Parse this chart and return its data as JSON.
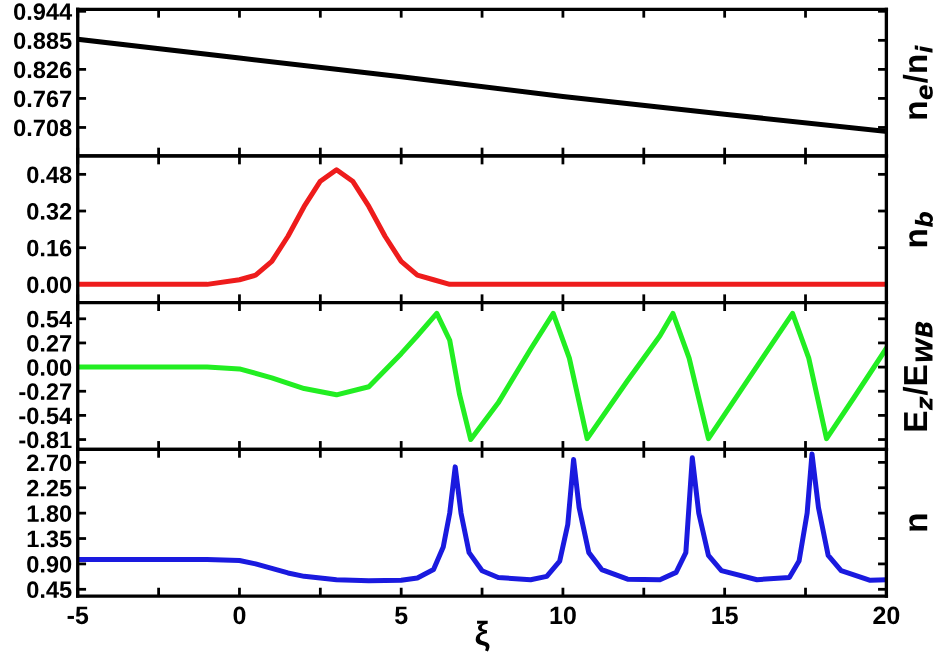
{
  "chart_data": [
    {
      "type": "line",
      "ylabel": "n$_{e}$/n$_{i}$",
      "xlim": [
        -5,
        20
      ],
      "ylim": [
        0.65,
        0.948
      ],
      "tick_labels": "y",
      "xticks": [
        -5,
        {
          "value": -2.5,
          "label": null
        },
        0,
        {
          "value": 2.5,
          "label": null
        },
        5,
        {
          "value": 7.5,
          "label": null
        },
        10,
        {
          "value": 12.5,
          "label": null
        },
        15,
        {
          "value": 17.5,
          "label": null
        },
        20
      ],
      "yticks": [
        0.708,
        0.767,
        0.826,
        0.885,
        0.944
      ],
      "series": [
        {
          "color": "#000000",
          "x": [
            -5,
            0,
            5,
            10,
            15,
            20
          ],
          "values": [
            0.887,
            0.849,
            0.811,
            0.771,
            0.735,
            0.7
          ]
        }
      ]
    },
    {
      "type": "line",
      "ylabel": "n$_{b}$",
      "xlim": [
        -5,
        20
      ],
      "ylim": [
        -0.08,
        0.56
      ],
      "tick_labels": "y",
      "xticks": [
        -5,
        {
          "value": -2.5,
          "label": null
        },
        0,
        {
          "value": 2.5,
          "label": null
        },
        5,
        {
          "value": 7.5,
          "label": null
        },
        10,
        {
          "value": 12.5,
          "label": null
        },
        15,
        {
          "value": 17.5,
          "label": null
        },
        20
      ],
      "yticks": [
        {
          "value": 0,
          "label": "0.00"
        },
        0.16,
        0.32,
        0.48
      ],
      "series": [
        {
          "color": "#ee1c1c",
          "x": [
            -5,
            -1,
            0,
            0.5,
            1,
            1.5,
            2,
            2.5,
            3,
            3.5,
            4,
            4.5,
            5,
            5.5,
            6,
            6.5,
            7,
            20
          ],
          "values": [
            0,
            0,
            0.02,
            0.04,
            0.1,
            0.21,
            0.34,
            0.45,
            0.5,
            0.45,
            0.34,
            0.21,
            0.1,
            0.04,
            0.02,
            0.0,
            0,
            0
          ]
        }
      ]
    },
    {
      "type": "line",
      "ylabel": "E$_{z}$/E$_{WB}$",
      "xlim": [
        -5,
        20
      ],
      "ylim": [
        -0.92,
        0.72
      ],
      "tick_labels": "y",
      "xticks": [
        -5,
        {
          "value": -2.5,
          "label": null
        },
        0,
        {
          "value": 2.5,
          "label": null
        },
        5,
        {
          "value": 7.5,
          "label": null
        },
        10,
        {
          "value": 12.5,
          "label": null
        },
        15,
        {
          "value": 17.5,
          "label": null
        },
        20
      ],
      "yticks": [
        -0.81,
        -0.54,
        -0.27,
        {
          "value": 0,
          "label": "0.00"
        },
        0.27,
        0.54
      ],
      "series": [
        {
          "color": "#22ee22",
          "x": [
            -5,
            -1,
            0,
            1,
            2,
            3,
            4,
            5,
            5.5,
            6.1,
            6.5,
            6.8,
            7.15,
            8,
            9,
            9.7,
            10.2,
            10.75,
            12,
            13,
            13.4,
            13.9,
            14.5,
            15.5,
            16.5,
            17.1,
            17.6,
            18.15,
            19,
            20
          ],
          "values": [
            0,
            0,
            -0.02,
            -0.12,
            -0.24,
            -0.31,
            -0.22,
            0.15,
            0.35,
            0.6,
            0.3,
            -0.3,
            -0.81,
            -0.4,
            0.2,
            0.6,
            0.1,
            -0.8,
            -0.15,
            0.35,
            0.6,
            0.1,
            -0.8,
            -0.26,
            0.28,
            0.6,
            0.1,
            -0.8,
            -0.34,
            0.21
          ]
        }
      ]
    },
    {
      "type": "line",
      "ylabel": "n",
      "xlabel": "ξ",
      "xlim": [
        -5,
        20
      ],
      "ylim": [
        0.33,
        2.93
      ],
      "xticks": [
        -5,
        {
          "value": -2.5,
          "label": null
        },
        0,
        {
          "value": 2.5,
          "label": null
        },
        5,
        {
          "value": 7.5,
          "label": null
        },
        10,
        {
          "value": 12.5,
          "label": null
        },
        15,
        {
          "value": 17.5,
          "label": null
        },
        20
      ],
      "yticks": [
        0.45,
        {
          "value": 0.9,
          "label": "0.90"
        },
        1.35,
        {
          "value": 1.8,
          "label": "1.80"
        },
        2.25,
        {
          "value": 2.7,
          "label": "2.70"
        }
      ],
      "series": [
        {
          "color": "#1a1adf",
          "x": [
            -5,
            -1,
            0,
            0.5,
            1,
            1.5,
            2,
            3,
            4,
            5,
            5.5,
            6,
            6.3,
            6.5,
            6.67,
            6.85,
            7.1,
            7.5,
            8,
            9,
            9.5,
            9.9,
            10.15,
            10.33,
            10.5,
            10.8,
            11.2,
            12,
            13,
            13.5,
            13.8,
            14.0,
            14.2,
            14.5,
            14.9,
            16,
            17,
            17.3,
            17.55,
            17.7,
            17.9,
            18.2,
            18.6,
            19.5,
            20
          ],
          "values": [
            0.98,
            0.98,
            0.96,
            0.9,
            0.82,
            0.74,
            0.68,
            0.62,
            0.6,
            0.61,
            0.65,
            0.8,
            1.2,
            1.8,
            2.62,
            1.8,
            1.1,
            0.78,
            0.66,
            0.62,
            0.68,
            0.95,
            1.6,
            2.75,
            1.9,
            1.1,
            0.8,
            0.63,
            0.62,
            0.75,
            1.1,
            2.78,
            1.8,
            1.05,
            0.78,
            0.62,
            0.66,
            0.95,
            1.8,
            2.85,
            1.9,
            1.05,
            0.78,
            0.61,
            0.62
          ]
        }
      ]
    }
  ]
}
